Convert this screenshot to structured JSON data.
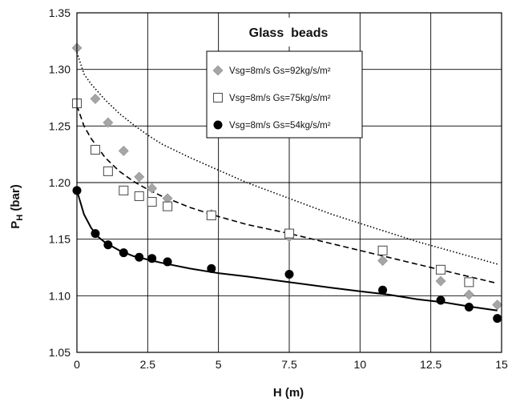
{
  "chart_data": {
    "type": "scatter",
    "title": "Glass  beads",
    "xlabel": "H (m)",
    "ylabel_main": "P",
    "ylabel_sub": "H",
    "ylabel_unit": " (bar)",
    "xlim": [
      0,
      15
    ],
    "ylim": [
      1.05,
      1.35
    ],
    "grid": true,
    "legend_position": "top-center",
    "xticks": [
      0,
      2.5,
      5,
      7.5,
      10,
      12.5,
      15
    ],
    "xtick_labels": [
      "0",
      "2.5",
      "5",
      "7.5",
      "10",
      "12.5",
      "15"
    ],
    "yticks": [
      1.05,
      1.1,
      1.15,
      1.2,
      1.25,
      1.3,
      1.35
    ],
    "ytick_labels": [
      "1.05",
      "1.10",
      "1.15",
      "1.20",
      "1.25",
      "1.30",
      "1.35"
    ],
    "series": [
      {
        "name": "Vsg=8m/s Gs=92kg/s/m²",
        "marker": "diamond",
        "color": "#a6a6a6",
        "x": [
          0,
          0.65,
          1.1,
          1.65,
          2.2,
          2.65,
          3.2,
          4.75,
          7.5,
          10.8,
          12.85,
          13.85,
          14.85
        ],
        "y": [
          1.319,
          1.274,
          1.253,
          1.228,
          1.205,
          1.195,
          1.186,
          1.172,
          1.152,
          1.131,
          1.113,
          1.101,
          1.092
        ]
      },
      {
        "name": "Vsg=8m/s Gs=75kg/s/m²",
        "marker": "open-square",
        "color": "#555555",
        "x": [
          0,
          0.65,
          1.1,
          1.65,
          2.2,
          2.65,
          3.2,
          4.75,
          7.5,
          10.8,
          12.85,
          13.85
        ],
        "y": [
          1.27,
          1.229,
          1.21,
          1.193,
          1.188,
          1.183,
          1.179,
          1.171,
          1.155,
          1.14,
          1.123,
          1.112
        ]
      },
      {
        "name": "Vsg=8m/s Gs=54kg/s/m²",
        "marker": "filled-circle",
        "color": "#000000",
        "x": [
          0,
          0.65,
          1.1,
          1.65,
          2.2,
          2.65,
          3.2,
          4.75,
          7.5,
          10.8,
          12.85,
          13.85,
          14.85
        ],
        "y": [
          1.193,
          1.155,
          1.145,
          1.138,
          1.134,
          1.133,
          1.13,
          1.124,
          1.119,
          1.105,
          1.096,
          1.09,
          1.08
        ]
      }
    ],
    "fit_curves": [
      {
        "style": "dotted",
        "color": "#000000",
        "x": [
          0,
          0.25,
          0.5,
          1,
          1.5,
          2,
          2.5,
          3,
          4,
          5,
          6,
          7.5,
          9,
          10,
          11,
          12,
          13,
          14,
          14.85
        ],
        "y": [
          1.315,
          1.296,
          1.287,
          1.273,
          1.261,
          1.251,
          1.242,
          1.234,
          1.222,
          1.211,
          1.2,
          1.186,
          1.172,
          1.164,
          1.156,
          1.148,
          1.141,
          1.134,
          1.128
        ]
      },
      {
        "style": "dashed",
        "color": "#000000",
        "x": [
          0,
          0.25,
          0.5,
          1,
          1.5,
          2,
          2.5,
          3,
          4,
          5,
          6,
          7.5,
          9,
          10,
          11,
          12,
          13,
          14,
          14.85
        ],
        "y": [
          1.268,
          1.25,
          1.239,
          1.222,
          1.21,
          1.201,
          1.194,
          1.188,
          1.178,
          1.17,
          1.163,
          1.155,
          1.146,
          1.14,
          1.134,
          1.128,
          1.122,
          1.116,
          1.111
        ]
      },
      {
        "style": "solid",
        "color": "#000000",
        "x": [
          0,
          0.25,
          0.5,
          0.75,
          1,
          1.5,
          2,
          2.5,
          3,
          4,
          5,
          6,
          7.5,
          9,
          10,
          11,
          12,
          13,
          14,
          14.85
        ],
        "y": [
          1.193,
          1.172,
          1.16,
          1.152,
          1.147,
          1.14,
          1.135,
          1.132,
          1.129,
          1.124,
          1.12,
          1.117,
          1.112,
          1.107,
          1.104,
          1.101,
          1.097,
          1.094,
          1.09,
          1.087
        ]
      }
    ]
  }
}
